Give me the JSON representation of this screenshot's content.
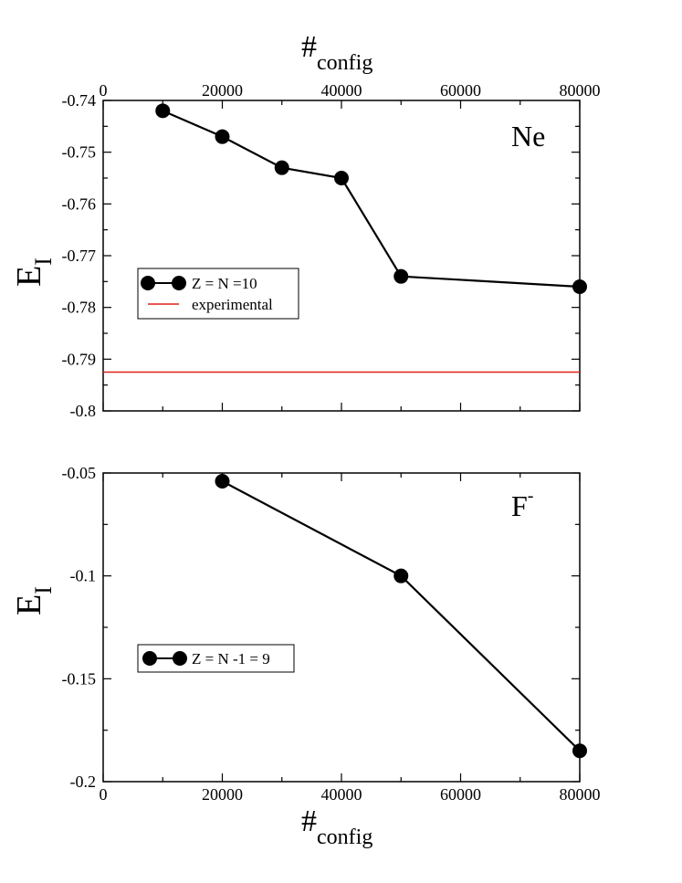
{
  "chart_data": [
    {
      "type": "line",
      "panel_label": "Ne",
      "xlabel": "#",
      "xlabel_sub": "config",
      "ylabel": "E",
      "ylabel_sub": "I",
      "xlim": [
        0,
        80000
      ],
      "ylim": [
        -0.8,
        -0.74
      ],
      "x_axis_position": "top",
      "grid": false,
      "legend_position": "center-left",
      "xticks": [
        0,
        20000,
        40000,
        60000,
        80000
      ],
      "xtick_labels": [
        "0",
        "20000",
        "40000",
        "60000",
        "80000"
      ],
      "yticks": [
        -0.8,
        -0.79,
        -0.78,
        -0.77,
        -0.76,
        -0.75,
        -0.74
      ],
      "ytick_labels": [
        "-0.8",
        "-0.79",
        "-0.78",
        "-0.77",
        "-0.76",
        "-0.75",
        "-0.74"
      ],
      "series": [
        {
          "name": "Z = N =10",
          "color": "#000000",
          "marker": "circle",
          "x": [
            10000,
            20000,
            30000,
            40000,
            50000,
            80000
          ],
          "y": [
            -0.742,
            -0.747,
            -0.753,
            -0.755,
            -0.774,
            -0.776
          ]
        },
        {
          "name": "experimental",
          "color": "#e0201a",
          "marker": "none",
          "hline": -0.7925
        }
      ]
    },
    {
      "type": "line",
      "panel_label": "F",
      "panel_label_sup": "-",
      "xlabel": "#",
      "xlabel_sub": "config",
      "ylabel": "E",
      "ylabel_sub": "I",
      "xlim": [
        0,
        80000
      ],
      "ylim": [
        -0.2,
        -0.05
      ],
      "x_axis_position": "bottom",
      "grid": false,
      "legend_position": "center-left",
      "xticks": [
        0,
        20000,
        40000,
        60000,
        80000
      ],
      "xtick_labels": [
        "0",
        "20000",
        "40000",
        "60000",
        "80000"
      ],
      "yticks": [
        -0.2,
        -0.15,
        -0.1,
        -0.05
      ],
      "ytick_labels": [
        "-0.2",
        "-0.15",
        "-0.1",
        "-0.05"
      ],
      "series": [
        {
          "name": "Z = N -1 = 9",
          "color": "#000000",
          "marker": "circle",
          "x": [
            20000,
            50000,
            80000
          ],
          "y": [
            -0.054,
            -0.1,
            -0.185
          ]
        }
      ]
    }
  ]
}
